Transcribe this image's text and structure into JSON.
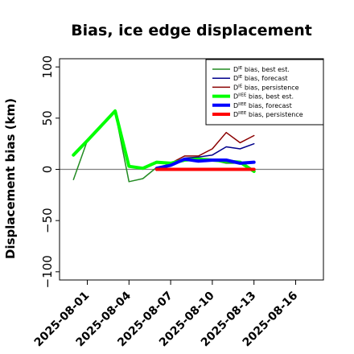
{
  "chart_data": {
    "type": "line",
    "title": "Bias, ice edge displacement",
    "xlabel": "",
    "ylabel": "Displacement bias (km)",
    "xlim": [
      "2025-07-30",
      "2025-08-18"
    ],
    "ylim": [
      -108,
      108
    ],
    "yticks": [
      -100,
      -50,
      0,
      50,
      100
    ],
    "ytick_labels": [
      "−100",
      "−50",
      "0",
      "50",
      "100"
    ],
    "xticks": [
      "2025-08-01",
      "2025-08-04",
      "2025-08-07",
      "2025-08-10",
      "2025-08-13",
      "2025-08-16"
    ],
    "xtick_labels": [
      "2025-08-01",
      "2025-08-04",
      "2025-08-07",
      "2025-08-10",
      "2025-08-13",
      "2025-08-16"
    ],
    "xtick_colors": [
      "#000000",
      "#000000",
      "#228b22",
      "#000000",
      "#000000",
      "#000000"
    ],
    "reference_line": {
      "y": 0,
      "color": "#808080"
    },
    "grid": false,
    "legend_position": "top-right",
    "series": [
      {
        "name": "D",
        "sup": "IE",
        "suffix": " bias, best est.",
        "color": "#228b22",
        "width": 1.5,
        "x": [
          "2025-07-31",
          "2025-08-01",
          "2025-08-03",
          "2025-08-04",
          "2025-08-05",
          "2025-08-06",
          "2025-08-07",
          "2025-08-08",
          "2025-08-09",
          "2025-08-10",
          "2025-08-11",
          "2025-08-12",
          "2025-08-13"
        ],
        "y": [
          -10,
          28,
          56,
          -12,
          -9,
          2,
          5,
          9,
          10,
          9,
          6,
          6,
          -1
        ]
      },
      {
        "name": "D",
        "sup": "IE",
        "suffix": " bias, forecast",
        "color": "#00008b",
        "width": 1.5,
        "x": [
          "2025-08-06",
          "2025-08-07",
          "2025-08-08",
          "2025-08-09",
          "2025-08-10",
          "2025-08-11",
          "2025-08-12",
          "2025-08-13"
        ],
        "y": [
          -1,
          5,
          11,
          12,
          14,
          22,
          20,
          25
        ]
      },
      {
        "name": "D",
        "sup": "IE",
        "suffix": " bias, persistence",
        "color": "#8b0000",
        "width": 1.5,
        "x": [
          "2025-08-06",
          "2025-08-07",
          "2025-08-08",
          "2025-08-09",
          "2025-08-10",
          "2025-08-11",
          "2025-08-12",
          "2025-08-13"
        ],
        "y": [
          0,
          6,
          13,
          13,
          20,
          36,
          26,
          33
        ]
      },
      {
        "name": "D",
        "sup": "IIEE",
        "suffix": " bias, best est.",
        "color": "#00ff00",
        "width": 4,
        "x": [
          "2025-07-31",
          "2025-08-01",
          "2025-08-03",
          "2025-08-04",
          "2025-08-05",
          "2025-08-06",
          "2025-08-07",
          "2025-08-08",
          "2025-08-09",
          "2025-08-10",
          "2025-08-11",
          "2025-08-12",
          "2025-08-13"
        ],
        "y": [
          14,
          28,
          57,
          3,
          1,
          7,
          6,
          9,
          10,
          9,
          8,
          7,
          -2
        ]
      },
      {
        "name": "D",
        "sup": "IIEE",
        "suffix": " bias, forecast",
        "color": "#0000ff",
        "width": 4,
        "x": [
          "2025-08-06",
          "2025-08-07",
          "2025-08-08",
          "2025-08-09",
          "2025-08-10",
          "2025-08-11",
          "2025-08-12",
          "2025-08-13"
        ],
        "y": [
          1,
          4,
          10,
          8,
          9,
          9,
          6,
          7
        ]
      },
      {
        "name": "D",
        "sup": "IIEE",
        "suffix": " bias, persistence",
        "color": "#ff0000",
        "width": 4,
        "x": [
          "2025-08-06",
          "2025-08-07",
          "2025-08-08",
          "2025-08-09",
          "2025-08-10",
          "2025-08-11",
          "2025-08-12",
          "2025-08-13"
        ],
        "y": [
          0,
          0,
          0,
          0,
          0,
          0,
          0,
          0
        ]
      }
    ]
  }
}
